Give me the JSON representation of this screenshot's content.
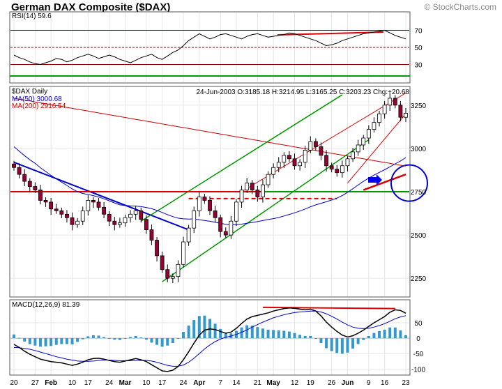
{
  "header": {
    "title": "German DAX Composite ($DAX)",
    "watermark": "© StockCharts.com"
  },
  "chart_data": [
    {
      "type": "line",
      "panel": "rsi",
      "label": "RSI(14) 59.6",
      "ylim": [
        10,
        90
      ],
      "yticks": [
        30,
        50,
        70
      ],
      "bands": [
        30,
        70
      ],
      "series": [
        {
          "name": "RSI(14)",
          "color": "#000000",
          "values": [
            41,
            38,
            36,
            33,
            31,
            30,
            32,
            34,
            37,
            36,
            33,
            35,
            38,
            40,
            42,
            40,
            37,
            39,
            41,
            39,
            36,
            34,
            32,
            35,
            38,
            40,
            42,
            38,
            36,
            40,
            44,
            47,
            52,
            58,
            62,
            66,
            63,
            60,
            62,
            65,
            66,
            64,
            62,
            60,
            63,
            65,
            66,
            64,
            62,
            63,
            64,
            65,
            67,
            66,
            64,
            62,
            60,
            58,
            55,
            52,
            53,
            55,
            58,
            60,
            62,
            64,
            66,
            67,
            68,
            69,
            70,
            67,
            64,
            62,
            60
          ]
        }
      ]
    },
    {
      "type": "candlestick",
      "panel": "price",
      "label": "$DAX Daily",
      "ohlc_text": "24-Jun-2003 O:3185.18 H:3214.95 L:3165.25 C:3203.23 Chg:+20.68",
      "ylim": [
        2150,
        3350
      ],
      "yticks": [
        2250,
        2500,
        2750,
        3000,
        3250
      ],
      "x_tick_labels": [
        "20",
        "27",
        "Feb",
        "10",
        "17",
        "24",
        "Mar",
        "10",
        "17",
        "24",
        "Apr",
        "7",
        "14",
        "21",
        "May",
        "12",
        "19",
        "26",
        "Jun",
        "9",
        "16",
        "23"
      ],
      "close": [
        2890,
        2850,
        2810,
        2780,
        2760,
        2700,
        2690,
        2650,
        2640,
        2620,
        2600,
        2560,
        2580,
        2640,
        2700,
        2690,
        2660,
        2620,
        2580,
        2560,
        2570,
        2600,
        2620,
        2640,
        2590,
        2530,
        2470,
        2380,
        2300,
        2250,
        2260,
        2330,
        2460,
        2540,
        2640,
        2720,
        2700,
        2640,
        2600,
        2520,
        2500,
        2580,
        2690,
        2760,
        2800,
        2760,
        2720,
        2790,
        2850,
        2890,
        2920,
        2960,
        2940,
        2900,
        2920,
        2990,
        3040,
        3010,
        2960,
        2900,
        2880,
        2860,
        2900,
        2940,
        2980,
        3020,
        3060,
        3110,
        3150,
        3200,
        3250,
        3290,
        3250,
        3180,
        3203
      ],
      "series": [
        {
          "name": "MA(50) 3000.68",
          "color": "#0000cc"
        },
        {
          "name": "MA(200) 2916.54",
          "color": "#cc0000"
        }
      ]
    },
    {
      "type": "line",
      "panel": "macd",
      "label": "MACD(12,26,9) 81.39",
      "ylim": [
        -115,
        120
      ],
      "yticks": [
        -100,
        -50,
        0,
        50
      ],
      "series": [
        {
          "name": "MACD",
          "color": "#000000",
          "values": [
            -20,
            -30,
            -42,
            -52,
            -60,
            -68,
            -72,
            -76,
            -78,
            -80,
            -84,
            -88,
            -84,
            -78,
            -70,
            -66,
            -65,
            -68,
            -72,
            -76,
            -78,
            -74,
            -70,
            -66,
            -70,
            -76,
            -86,
            -96,
            -106,
            -108,
            -104,
            -92,
            -70,
            -44,
            -16,
            10,
            26,
            30,
            28,
            22,
            16,
            20,
            32,
            48,
            62,
            70,
            74,
            78,
            82,
            88,
            92,
            96,
            98,
            97,
            94,
            92,
            94,
            88,
            72,
            52,
            36,
            22,
            10,
            4,
            8,
            16,
            26,
            38,
            50,
            60,
            70,
            84,
            92,
            90,
            81
          ]
        },
        {
          "name": "Signal",
          "color": "#0000cc",
          "values": [
            -30,
            -31,
            -33,
            -36,
            -40,
            -45,
            -50,
            -55,
            -60,
            -64,
            -68,
            -71,
            -74,
            -75,
            -75,
            -74,
            -72,
            -71,
            -71,
            -72,
            -73,
            -73,
            -73,
            -72,
            -72,
            -72,
            -74,
            -78,
            -83,
            -88,
            -91,
            -91,
            -87,
            -78,
            -65,
            -50,
            -35,
            -22,
            -11,
            -3,
            3,
            7,
            12,
            19,
            27,
            36,
            44,
            52,
            59,
            66,
            71,
            76,
            80,
            83,
            85,
            86,
            88,
            88,
            85,
            79,
            71,
            62,
            52,
            43,
            36,
            32,
            31,
            32,
            36,
            41,
            47,
            55,
            63,
            69,
            73
          ]
        }
      ]
    }
  ]
}
